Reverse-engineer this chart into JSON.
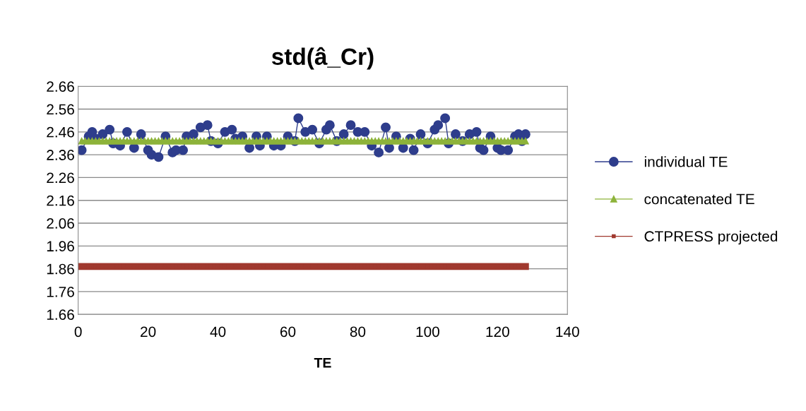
{
  "chart_data": {
    "type": "line",
    "title": "std(â_Cr)",
    "xlabel": "TE",
    "x": [
      1,
      2,
      3,
      4,
      5,
      6,
      7,
      8,
      9,
      10,
      11,
      12,
      13,
      14,
      15,
      16,
      17,
      18,
      19,
      20,
      21,
      22,
      23,
      24,
      25,
      26,
      27,
      28,
      29,
      30,
      31,
      32,
      33,
      34,
      35,
      36,
      37,
      38,
      39,
      40,
      41,
      42,
      43,
      44,
      45,
      46,
      47,
      48,
      49,
      50,
      51,
      52,
      53,
      54,
      55,
      56,
      57,
      58,
      59,
      60,
      61,
      62,
      63,
      64,
      65,
      66,
      67,
      68,
      69,
      70,
      71,
      72,
      73,
      74,
      75,
      76,
      77,
      78,
      79,
      80,
      81,
      82,
      83,
      84,
      85,
      86,
      87,
      88,
      89,
      90,
      91,
      92,
      93,
      94,
      95,
      96,
      97,
      98,
      99,
      100,
      101,
      102,
      103,
      104,
      105,
      106,
      107,
      108,
      109,
      110,
      111,
      112,
      113,
      114,
      115,
      116,
      117,
      118,
      119,
      120,
      121,
      122,
      123,
      124,
      125,
      126,
      127,
      128
    ],
    "series": [
      {
        "name": "individual TE",
        "color": "#2e3d8c",
        "marker": "circle",
        "x": [
          1,
          3,
          4,
          5,
          7,
          9,
          10,
          12,
          14,
          16,
          18,
          20,
          21,
          23,
          25,
          27,
          28,
          30,
          31,
          33,
          35,
          37,
          38,
          40,
          42,
          44,
          45,
          47,
          49,
          51,
          52,
          54,
          56,
          58,
          60,
          62,
          63,
          65,
          67,
          69,
          71,
          72,
          74,
          76,
          78,
          80,
          82,
          84,
          86,
          88,
          89,
          91,
          93,
          95,
          96,
          98,
          100,
          102,
          103,
          105,
          106,
          108,
          110,
          112,
          114,
          115,
          116,
          118,
          120,
          121,
          123,
          125,
          126,
          127,
          128
        ],
        "values": [
          2.38,
          2.44,
          2.46,
          2.43,
          2.45,
          2.47,
          2.41,
          2.4,
          2.46,
          2.39,
          2.45,
          2.38,
          2.36,
          2.35,
          2.44,
          2.37,
          2.38,
          2.38,
          2.44,
          2.45,
          2.48,
          2.49,
          2.42,
          2.41,
          2.46,
          2.47,
          2.43,
          2.44,
          2.39,
          2.44,
          2.4,
          2.44,
          2.4,
          2.4,
          2.44,
          2.42,
          2.52,
          2.46,
          2.47,
          2.41,
          2.47,
          2.49,
          2.42,
          2.45,
          2.49,
          2.46,
          2.46,
          2.4,
          2.37,
          2.48,
          2.39,
          2.44,
          2.39,
          2.43,
          2.38,
          2.45,
          2.41,
          2.47,
          2.49,
          2.52,
          2.41,
          2.45,
          2.42,
          2.45,
          2.46,
          2.39,
          2.38,
          2.44,
          2.39,
          2.38,
          2.38,
          2.44,
          2.45,
          2.42,
          2.45
        ]
      },
      {
        "name": "concatenated TE",
        "color": "#8db33a",
        "marker": "triangle",
        "values": [
          2.42,
          2.42,
          2.42,
          2.42,
          2.42,
          2.42,
          2.42,
          2.42,
          2.42,
          2.42,
          2.42,
          2.42,
          2.42,
          2.42,
          2.42,
          2.42,
          2.42,
          2.42,
          2.42,
          2.42,
          2.42,
          2.42,
          2.42,
          2.42,
          2.42,
          2.42,
          2.42,
          2.42,
          2.42,
          2.42,
          2.42,
          2.42,
          2.42,
          2.42,
          2.42,
          2.42,
          2.42,
          2.42,
          2.42,
          2.42,
          2.42,
          2.42,
          2.42,
          2.42,
          2.42,
          2.42,
          2.42,
          2.42,
          2.42,
          2.42,
          2.42,
          2.42,
          2.42,
          2.42,
          2.42,
          2.42,
          2.42,
          2.42,
          2.42,
          2.42,
          2.42,
          2.42,
          2.42,
          2.42,
          2.42,
          2.42,
          2.42,
          2.42,
          2.42,
          2.42,
          2.42,
          2.42,
          2.42,
          2.42,
          2.42,
          2.42,
          2.42,
          2.42,
          2.42,
          2.42,
          2.42,
          2.42,
          2.42,
          2.42,
          2.42,
          2.42,
          2.42,
          2.42,
          2.42,
          2.42,
          2.42,
          2.42,
          2.42,
          2.42,
          2.42,
          2.42,
          2.42,
          2.42,
          2.42,
          2.42,
          2.42,
          2.42,
          2.42,
          2.42,
          2.42,
          2.42,
          2.42,
          2.42,
          2.42,
          2.42,
          2.42,
          2.42,
          2.42,
          2.42,
          2.42,
          2.42,
          2.42,
          2.42,
          2.42,
          2.42,
          2.42,
          2.42,
          2.42,
          2.42,
          2.42,
          2.42,
          2.42,
          2.42
        ]
      },
      {
        "name": "CTPRESS projected",
        "color": "#a0392f",
        "marker": "square",
        "values": [
          1.87,
          1.87,
          1.87,
          1.87,
          1.87,
          1.87,
          1.87,
          1.87,
          1.87,
          1.87,
          1.87,
          1.87,
          1.87,
          1.87,
          1.87,
          1.87,
          1.87,
          1.87,
          1.87,
          1.87,
          1.87,
          1.87,
          1.87,
          1.87,
          1.87,
          1.87,
          1.87,
          1.87,
          1.87,
          1.87,
          1.87,
          1.87,
          1.87,
          1.87,
          1.87,
          1.87,
          1.87,
          1.87,
          1.87,
          1.87,
          1.87,
          1.87,
          1.87,
          1.87,
          1.87,
          1.87,
          1.87,
          1.87,
          1.87,
          1.87,
          1.87,
          1.87,
          1.87,
          1.87,
          1.87,
          1.87,
          1.87,
          1.87,
          1.87,
          1.87,
          1.87,
          1.87,
          1.87,
          1.87,
          1.87,
          1.87,
          1.87,
          1.87,
          1.87,
          1.87,
          1.87,
          1.87,
          1.87,
          1.87,
          1.87,
          1.87,
          1.87,
          1.87,
          1.87,
          1.87,
          1.87,
          1.87,
          1.87,
          1.87,
          1.87,
          1.87,
          1.87,
          1.87,
          1.87,
          1.87,
          1.87,
          1.87,
          1.87,
          1.87,
          1.87,
          1.87,
          1.87,
          1.87,
          1.87,
          1.87,
          1.87,
          1.87,
          1.87,
          1.87,
          1.87,
          1.87,
          1.87,
          1.87,
          1.87,
          1.87,
          1.87,
          1.87,
          1.87,
          1.87,
          1.87,
          1.87,
          1.87,
          1.87,
          1.87,
          1.87,
          1.87,
          1.87,
          1.87,
          1.87,
          1.87,
          1.87,
          1.87,
          1.87
        ]
      }
    ],
    "xlim": [
      0,
      140
    ],
    "xticks": [
      0,
      20,
      40,
      60,
      80,
      100,
      120,
      140
    ],
    "ylim": [
      1.66,
      2.66
    ],
    "yticks": [
      1.66,
      1.76,
      1.86,
      1.96,
      2.06,
      2.16,
      2.26,
      2.36,
      2.46,
      2.56,
      2.66
    ],
    "grid": "y",
    "legend": "right",
    "line_style": "solid"
  }
}
